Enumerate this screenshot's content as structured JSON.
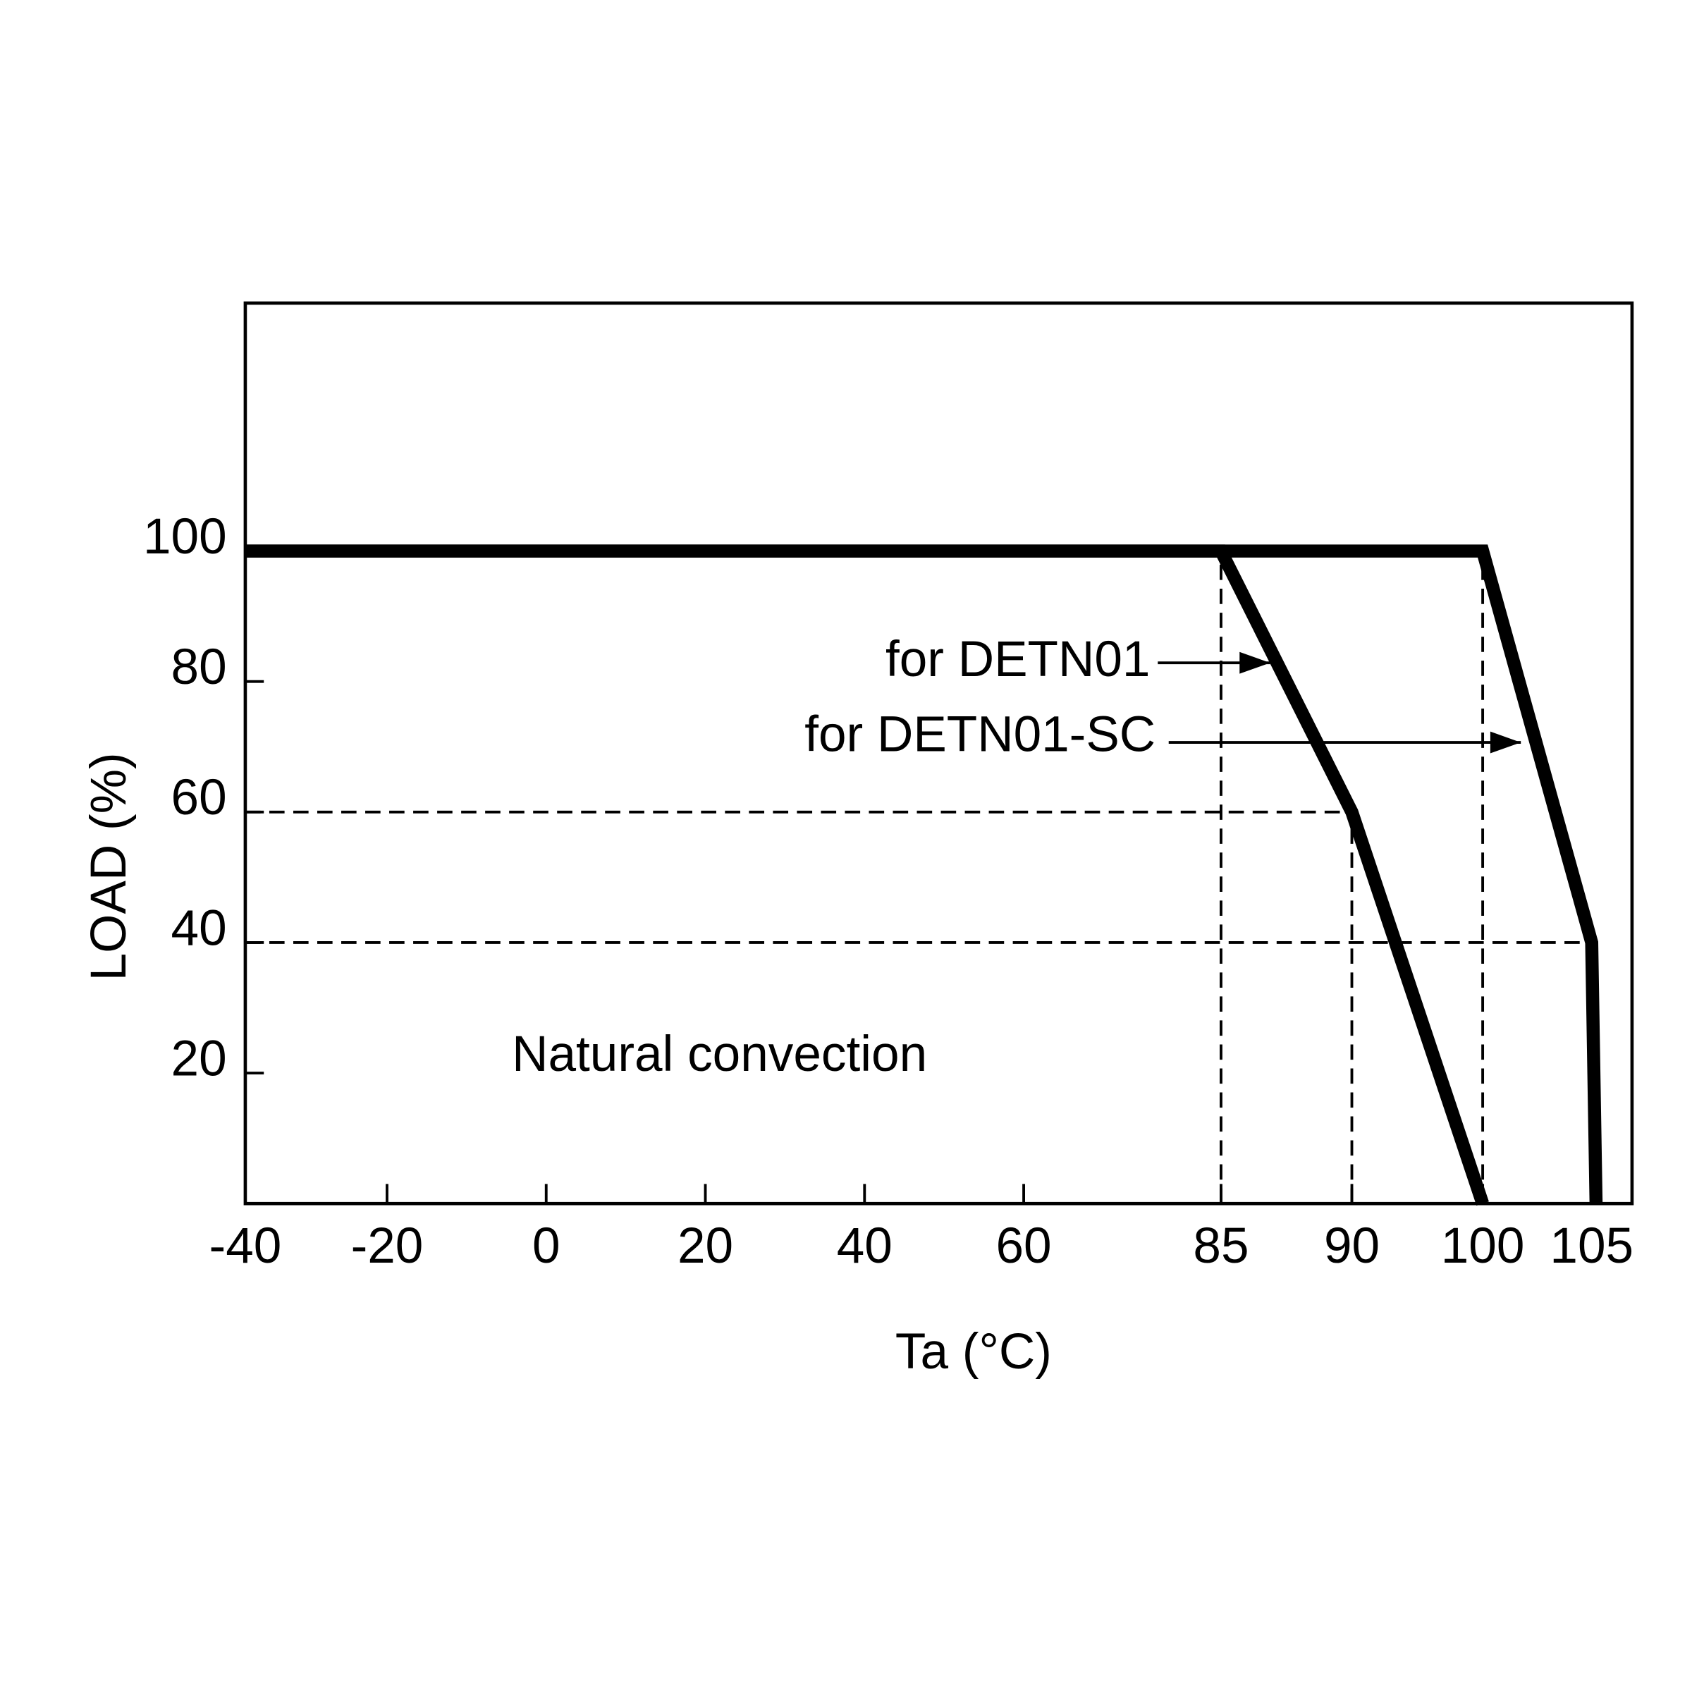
{
  "chart_data": {
    "type": "line",
    "x_label": "Ta (°C)",
    "y_label": "LOAD (%)",
    "annotations": [
      "Natural convection"
    ],
    "series": [
      {
        "name": "for DETN01",
        "color": "#000000",
        "x": [
          -40,
          85,
          90,
          100
        ],
        "values": [
          100,
          100,
          60,
          0
        ]
      },
      {
        "name": "for DETN01-SC",
        "color": "#000000",
        "x": [
          -40,
          100,
          105,
          105.2
        ],
        "values": [
          100,
          100,
          40,
          0
        ]
      }
    ],
    "xlim": [
      -40,
      106.8
    ],
    "xticks": [
      -40,
      -20,
      0,
      20,
      40,
      60,
      85,
      90,
      100,
      105
    ],
    "ylim": [
      0,
      138
    ],
    "yticks": [
      20,
      40,
      60,
      80,
      100
    ]
  }
}
